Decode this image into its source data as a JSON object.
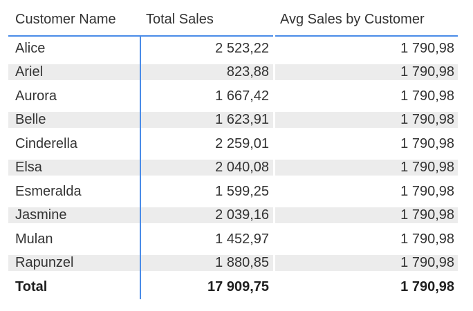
{
  "table": {
    "columns": [
      {
        "label": "Customer Name"
      },
      {
        "label": "Total Sales"
      },
      {
        "label": "Avg Sales by Customer"
      }
    ],
    "rows": [
      {
        "customer": "Alice",
        "total_sales": "2 523,22",
        "avg_sales": "1 790,98"
      },
      {
        "customer": "Ariel",
        "total_sales": "823,88",
        "avg_sales": "1 790,98"
      },
      {
        "customer": "Aurora",
        "total_sales": "1 667,42",
        "avg_sales": "1 790,98"
      },
      {
        "customer": "Belle",
        "total_sales": "1 623,91",
        "avg_sales": "1 790,98"
      },
      {
        "customer": "Cinderella",
        "total_sales": "2 259,01",
        "avg_sales": "1 790,98"
      },
      {
        "customer": "Elsa",
        "total_sales": "2 040,08",
        "avg_sales": "1 790,98"
      },
      {
        "customer": "Esmeralda",
        "total_sales": "1 599,25",
        "avg_sales": "1 790,98"
      },
      {
        "customer": "Jasmine",
        "total_sales": "2 039,16",
        "avg_sales": "1 790,98"
      },
      {
        "customer": "Mulan",
        "total_sales": "1 452,97",
        "avg_sales": "1 790,98"
      },
      {
        "customer": "Rapunzel",
        "total_sales": "1 880,85",
        "avg_sales": "1 790,98"
      }
    ],
    "total_row": {
      "customer": "Total",
      "total_sales": "17 909,75",
      "avg_sales": "1 790,98"
    }
  },
  "chart_data": {
    "type": "table",
    "title": "",
    "columns": [
      "Customer Name",
      "Total Sales",
      "Avg Sales by Customer"
    ],
    "rows": [
      [
        "Alice",
        2523.22,
        1790.98
      ],
      [
        "Ariel",
        823.88,
        1790.98
      ],
      [
        "Aurora",
        1667.42,
        1790.98
      ],
      [
        "Belle",
        1623.91,
        1790.98
      ],
      [
        "Cinderella",
        2259.01,
        1790.98
      ],
      [
        "Elsa",
        2040.08,
        1790.98
      ],
      [
        "Esmeralda",
        1599.25,
        1790.98
      ],
      [
        "Jasmine",
        2039.16,
        1790.98
      ],
      [
        "Mulan",
        1452.97,
        1790.98
      ],
      [
        "Rapunzel",
        1880.85,
        1790.98
      ]
    ],
    "total": [
      "Total",
      17909.75,
      1790.98
    ],
    "number_format": "space thousands separator, comma decimal",
    "layout": "alternating row stripes, blue header underline, blue vertical divider after first column"
  },
  "colors": {
    "accent_blue": "#4a8ce8",
    "stripe_gray": "#ececec",
    "text": "#333333",
    "total_text": "#1f1f1f",
    "background": "#ffffff"
  }
}
